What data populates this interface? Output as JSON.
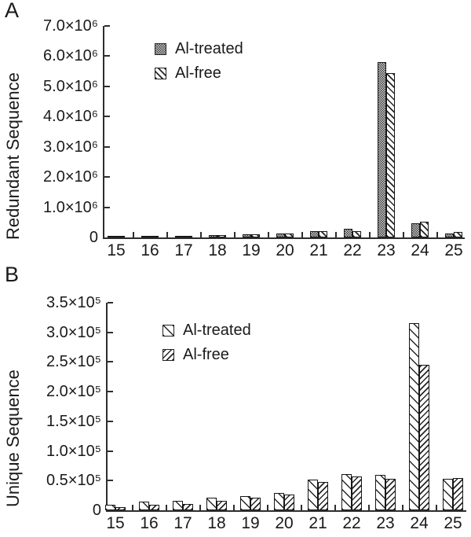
{
  "chart_data": [
    {
      "panel_label": "A",
      "type": "bar",
      "title": "",
      "xlabel": "",
      "ylabel": "Redundant Sequence",
      "categories": [
        "15",
        "16",
        "17",
        "18",
        "19",
        "20",
        "21",
        "22",
        "23",
        "24",
        "25"
      ],
      "series": [
        {
          "name": "Al-treated",
          "pattern": "gray-checker",
          "values": [
            50000,
            55000,
            60000,
            90000,
            105000,
            130000,
            200000,
            280000,
            5800000,
            480000,
            140000
          ]
        },
        {
          "name": "Al-free",
          "pattern": "diagonal-backslash",
          "values": [
            45000,
            50000,
            55000,
            80000,
            95000,
            120000,
            210000,
            200000,
            5450000,
            530000,
            170000
          ]
        }
      ],
      "ylim": [
        0,
        7000000
      ],
      "ytick_labels": [
        "0",
        "1.0×10⁶",
        "2.0×10⁶",
        "3.0×10⁶",
        "4.0×10⁶",
        "5.0×10⁶",
        "6.0×10⁶",
        "7.0×10⁶"
      ],
      "grid": false,
      "legend_position": "inside-top-left"
    },
    {
      "panel_label": "B",
      "type": "bar",
      "title": "",
      "xlabel": "",
      "ylabel": "Unique Sequence",
      "categories": [
        "15",
        "16",
        "17",
        "18",
        "19",
        "20",
        "21",
        "22",
        "23",
        "24",
        "25"
      ],
      "series": [
        {
          "name": "Al-treated",
          "pattern": "sparse-backslash",
          "values": [
            9000,
            14000,
            16000,
            21000,
            24000,
            29000,
            52000,
            61000,
            59000,
            315000,
            53000
          ]
        },
        {
          "name": "Al-free",
          "pattern": "diagonal-forward",
          "values": [
            5000,
            9000,
            11000,
            16000,
            21000,
            27000,
            48000,
            57000,
            53000,
            245000,
            54000
          ]
        }
      ],
      "ylim": [
        0,
        350000
      ],
      "ytick_labels": [
        "0",
        "0.5×10⁵",
        "1.0×10⁵",
        "1.5×10⁵",
        "2.0×10⁵",
        "2.5×10⁵",
        "3.0×10⁵",
        "3.5×10⁵"
      ],
      "grid": false,
      "legend_position": "inside-top-left"
    }
  ]
}
